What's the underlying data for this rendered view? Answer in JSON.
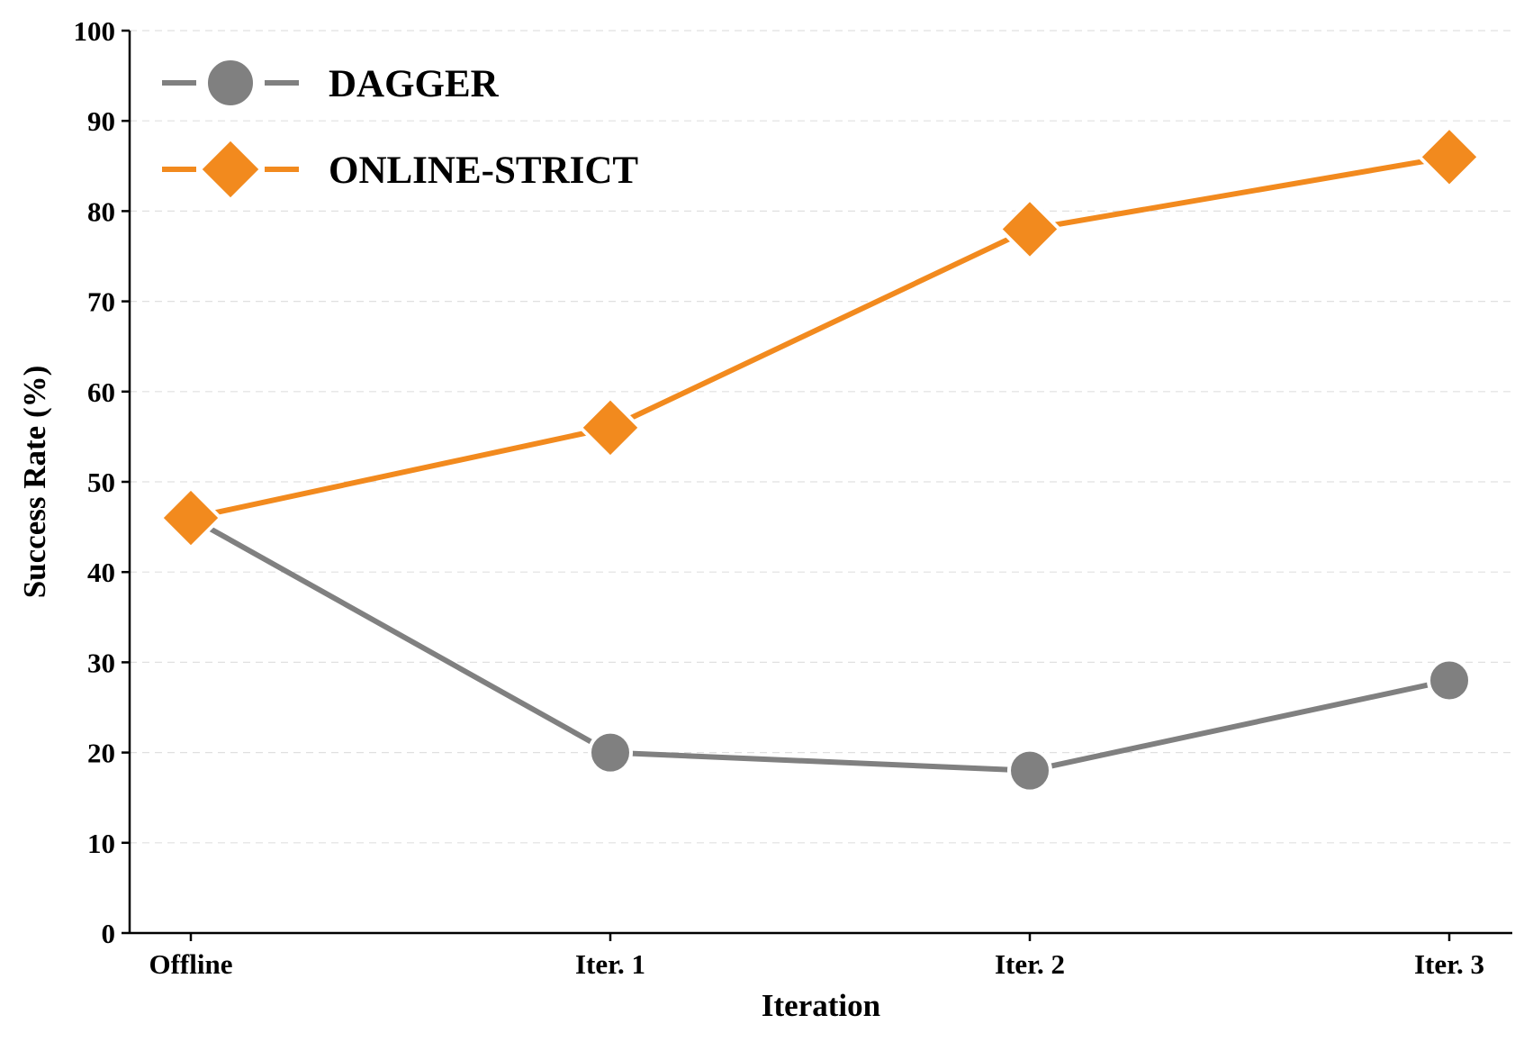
{
  "chart_data": {
    "type": "line",
    "title": "",
    "xlabel": "Iteration",
    "ylabel": "Success Rate (%)",
    "categories": [
      "Offline",
      "Iter. 1",
      "Iter. 2",
      "Iter. 3"
    ],
    "ylim": [
      0,
      100
    ],
    "yticks": [
      0,
      10,
      20,
      30,
      40,
      50,
      60,
      70,
      80,
      90,
      100
    ],
    "grid": "horizontal-dashed",
    "legend_position": "top-left",
    "series": [
      {
        "name": "DAGGER",
        "values": [
          46,
          20,
          18,
          28
        ],
        "color": "#808080",
        "marker": "circle"
      },
      {
        "name": "ONLINE-STRICT",
        "values": [
          46,
          56,
          78,
          86
        ],
        "color": "#F28A1E",
        "marker": "diamond"
      }
    ]
  }
}
